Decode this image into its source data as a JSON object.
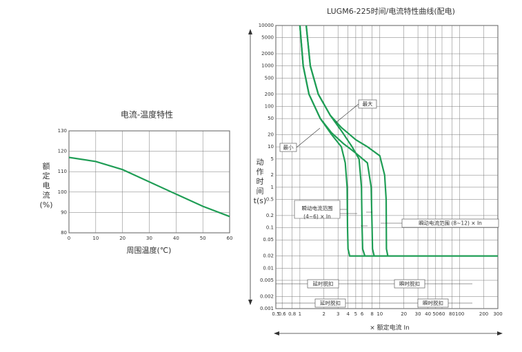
{
  "chart_data": [
    {
      "type": "line",
      "title": "电流-温度特性",
      "x_label": "周围温度(℃)",
      "y_label": [
        "额",
        "定",
        "电",
        "流",
        "(%)"
      ],
      "x": [
        0,
        10,
        20,
        30,
        40,
        50,
        60
      ],
      "series": [
        {
          "name": null,
          "color": "#1f9d55",
          "values": [
            117,
            115,
            111,
            105,
            99,
            93,
            88
          ]
        }
      ],
      "xlim": [
        0,
        60
      ],
      "xticks": [
        0,
        10,
        20,
        30,
        40,
        50,
        60
      ],
      "ylim": [
        80,
        130
      ],
      "yticks": [
        80,
        90,
        100,
        110,
        120,
        130
      ],
      "grid": true
    },
    {
      "type": "line",
      "title": "LUGM6-225时间/电流特性曲线(配电)",
      "x_label": "× 额定电流 In",
      "y_label": [
        "动",
        "作",
        "时",
        "间",
        "t(s)"
      ],
      "log_x": true,
      "log_y": true,
      "grid": true,
      "xlim": [
        0.5,
        300
      ],
      "xticks": [
        0.5,
        0.6,
        0.8,
        1,
        2,
        3,
        4,
        5,
        6,
        8,
        10,
        20,
        30,
        40,
        50,
        60,
        80,
        100,
        200,
        300
      ],
      "ylim": [
        0.001,
        10000
      ],
      "yticks": [
        0.001,
        0.002,
        0.005,
        0.01,
        0.02,
        0.05,
        0.1,
        0.2,
        0.5,
        1,
        2,
        5,
        10,
        20,
        50,
        100,
        200,
        500,
        1000,
        2000,
        5000,
        10000
      ],
      "series": [
        {
          "name": null,
          "color": "#1f9d55",
          "x": [
            1.0,
            1.1,
            1.3,
            1.8,
            2.5,
            3.3,
            3.7,
            3.9,
            3.95,
            4.0,
            4.2,
            300
          ],
          "values": [
            10000,
            1000,
            200,
            50,
            20,
            10,
            4,
            1,
            0.1,
            0.03,
            0.02,
            0.02
          ]
        },
        {
          "name": null,
          "color": "#1f9d55",
          "x": [
            1.2,
            1.35,
            1.7,
            2.4,
            3.3,
            4.5,
            5.5,
            5.9,
            6.0,
            6.1,
            6.5
          ],
          "values": [
            10000,
            1000,
            200,
            60,
            25,
            10,
            5,
            1,
            0.1,
            0.03,
            0.02
          ]
        },
        {
          "name": null,
          "color": "#1f9d55",
          "x": [
            1.0,
            1.1,
            1.3,
            1.8,
            2.5,
            3.5,
            5,
            7,
            7.8,
            8.0,
            8.1,
            8.5
          ],
          "values": [
            10000,
            1000,
            200,
            50,
            22,
            12,
            7,
            4,
            1,
            0.1,
            0.03,
            0.02
          ]
        },
        {
          "name": null,
          "color": "#1f9d55",
          "x": [
            1.2,
            1.35,
            1.7,
            2.4,
            3.3,
            5,
            7,
            10,
            11.5,
            12,
            12.1,
            12.6
          ],
          "values": [
            10000,
            1000,
            200,
            60,
            30,
            15,
            10,
            6,
            2,
            0.5,
            0.03,
            0.02
          ]
        }
      ],
      "annotations": [
        "最大",
        "最小",
        "瞬动电流范围",
        "(4~6) × In",
        "瞬动电流范围 (8~12) × In",
        "延时脱扣",
        "瞬时脱扣",
        "延时脱扣",
        "瞬时脱扣"
      ]
    }
  ]
}
